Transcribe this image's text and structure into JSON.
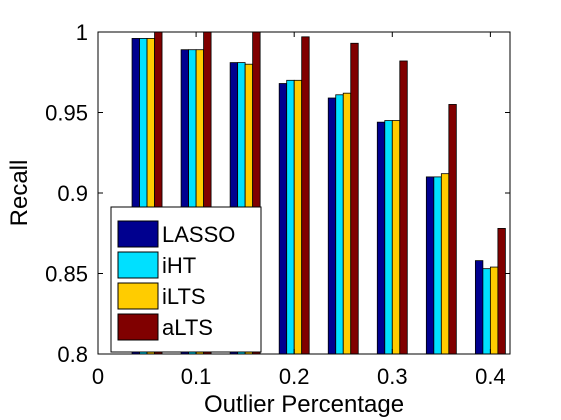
{
  "chart_data": {
    "type": "bar",
    "title": "",
    "xlabel": "Outlier Percentage",
    "ylabel": "Recall",
    "x": [
      0.05,
      0.1,
      0.15,
      0.2,
      0.25,
      0.3,
      0.35,
      0.4
    ],
    "xlim": [
      0,
      0.42
    ],
    "ylim": [
      0.8,
      1.0
    ],
    "xticks": [
      "0",
      "0.1",
      "0.2",
      "0.3",
      "0.4"
    ],
    "xtick_values": [
      0,
      0.1,
      0.2,
      0.3,
      0.4
    ],
    "yticks": [
      "0.8",
      "0.85",
      "0.9",
      "0.95",
      "1"
    ],
    "ytick_values": [
      0.8,
      0.85,
      0.9,
      0.95,
      1.0
    ],
    "grid": false,
    "legend_position": "bottom-left",
    "series": [
      {
        "name": "LASSO",
        "color": "#00008f",
        "values": [
          0.996,
          0.989,
          0.981,
          0.968,
          0.959,
          0.944,
          0.91,
          0.858
        ]
      },
      {
        "name": "iHT",
        "color": "#00e0ff",
        "values": [
          0.996,
          0.989,
          0.981,
          0.97,
          0.961,
          0.945,
          0.91,
          0.853
        ]
      },
      {
        "name": "iLTS",
        "color": "#ffcc00",
        "values": [
          0.996,
          0.989,
          0.98,
          0.97,
          0.962,
          0.945,
          0.912,
          0.854
        ]
      },
      {
        "name": "aLTS",
        "color": "#800000",
        "values": [
          1.0,
          1.0,
          1.0,
          0.997,
          0.993,
          0.982,
          0.955,
          0.878
        ]
      }
    ]
  }
}
